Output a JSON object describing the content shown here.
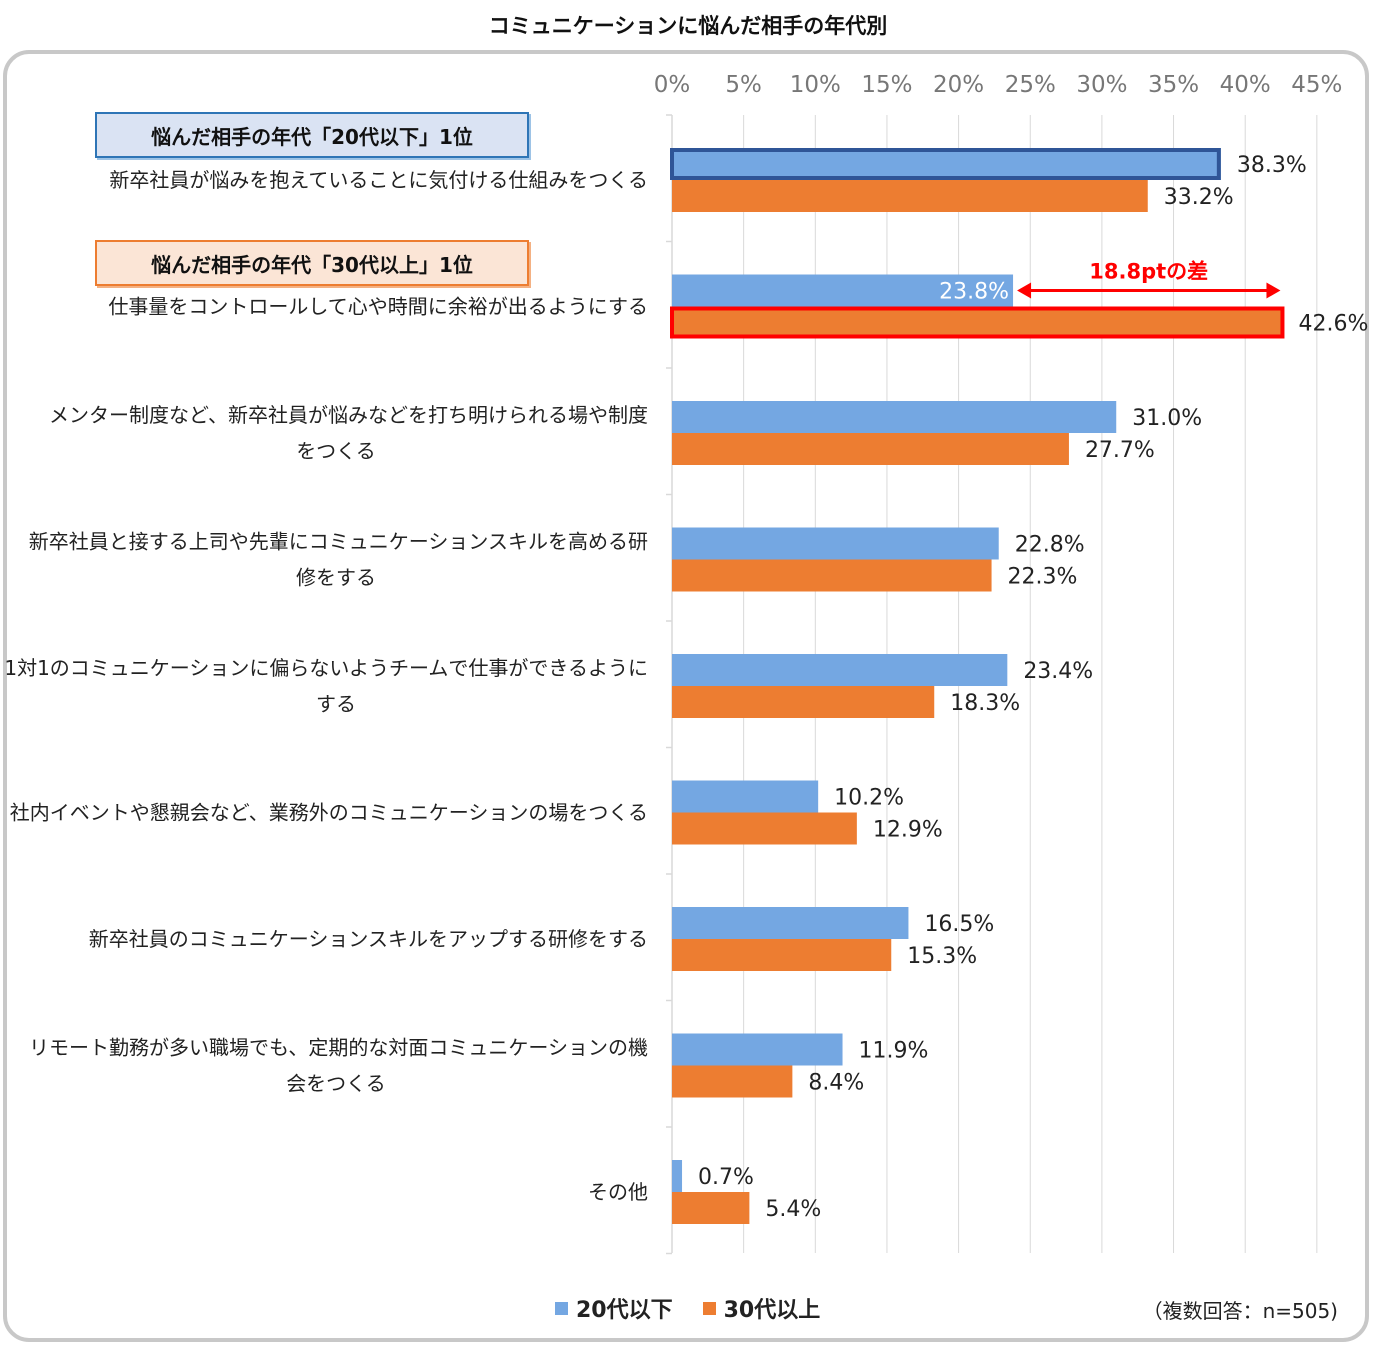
{
  "title": "コミュニケーションに悩んだ相手の年代別",
  "callouts": {
    "top20": "悩んだ相手の年代「20代以下」1位",
    "top30": "悩んだ相手の年代「30代以上」1位",
    "diff": "18.8ptの差"
  },
  "legend": {
    "s1": "20代以下",
    "s2": "30代以上"
  },
  "note": "（複数回答：n=505)",
  "colors": {
    "s1": "#74a7e2",
    "s2": "#ed7d31",
    "highlight_blue": "#2f5597",
    "highlight_red": "#ff0000"
  },
  "chart_data": {
    "type": "bar",
    "orientation": "horizontal",
    "title": "コミュニケーションに悩んだ相手の年代別",
    "xlim": [
      0,
      45
    ],
    "xticks": [
      "0%",
      "5%",
      "10%",
      "15%",
      "20%",
      "25%",
      "30%",
      "35%",
      "40%",
      "45%"
    ],
    "xtick_values": [
      0,
      5,
      10,
      15,
      20,
      25,
      30,
      35,
      40,
      45
    ],
    "grid": true,
    "legend_position": "bottom",
    "categories": [
      [
        "新卒社員が悩みを抱えていることに気付ける仕組みをつくる"
      ],
      [
        "仕事量をコントロールして心や時間に余裕が出るようにする"
      ],
      [
        "メンター制度など、新卒社員が悩みなどを打ち明けられる場や制度",
        "をつくる"
      ],
      [
        "新卒社員と接する上司や先輩にコミュニケーションスキルを高める研",
        "修をする"
      ],
      [
        "1対1のコミュニケーションに偏らないようチームで仕事ができるように",
        "する"
      ],
      [
        "社内イベントや懇親会など、業務外のコミュニケーションの場をつくる"
      ],
      [
        "新卒社員のコミュニケーションスキルをアップする研修をする"
      ],
      [
        "リモート勤務が多い職場でも、定期的な対面コミュニケーションの機",
        "会をつくる"
      ],
      [
        "その他"
      ]
    ],
    "series": [
      {
        "name": "20代以下",
        "values": [
          38.3,
          23.8,
          31.0,
          22.8,
          23.4,
          10.2,
          16.5,
          11.9,
          0.7
        ],
        "labels": [
          "38.3%",
          "23.8%",
          "31.0%",
          "22.8%",
          "23.4%",
          "10.2%",
          "16.5%",
          "11.9%",
          "0.7%"
        ]
      },
      {
        "name": "30代以上",
        "values": [
          33.2,
          42.6,
          27.7,
          22.3,
          18.3,
          12.9,
          15.3,
          8.4,
          5.4
        ],
        "labels": [
          "33.2%",
          "42.6%",
          "27.7%",
          "22.3%",
          "18.3%",
          "12.9%",
          "15.3%",
          "8.4%",
          "5.4%"
        ]
      }
    ]
  }
}
